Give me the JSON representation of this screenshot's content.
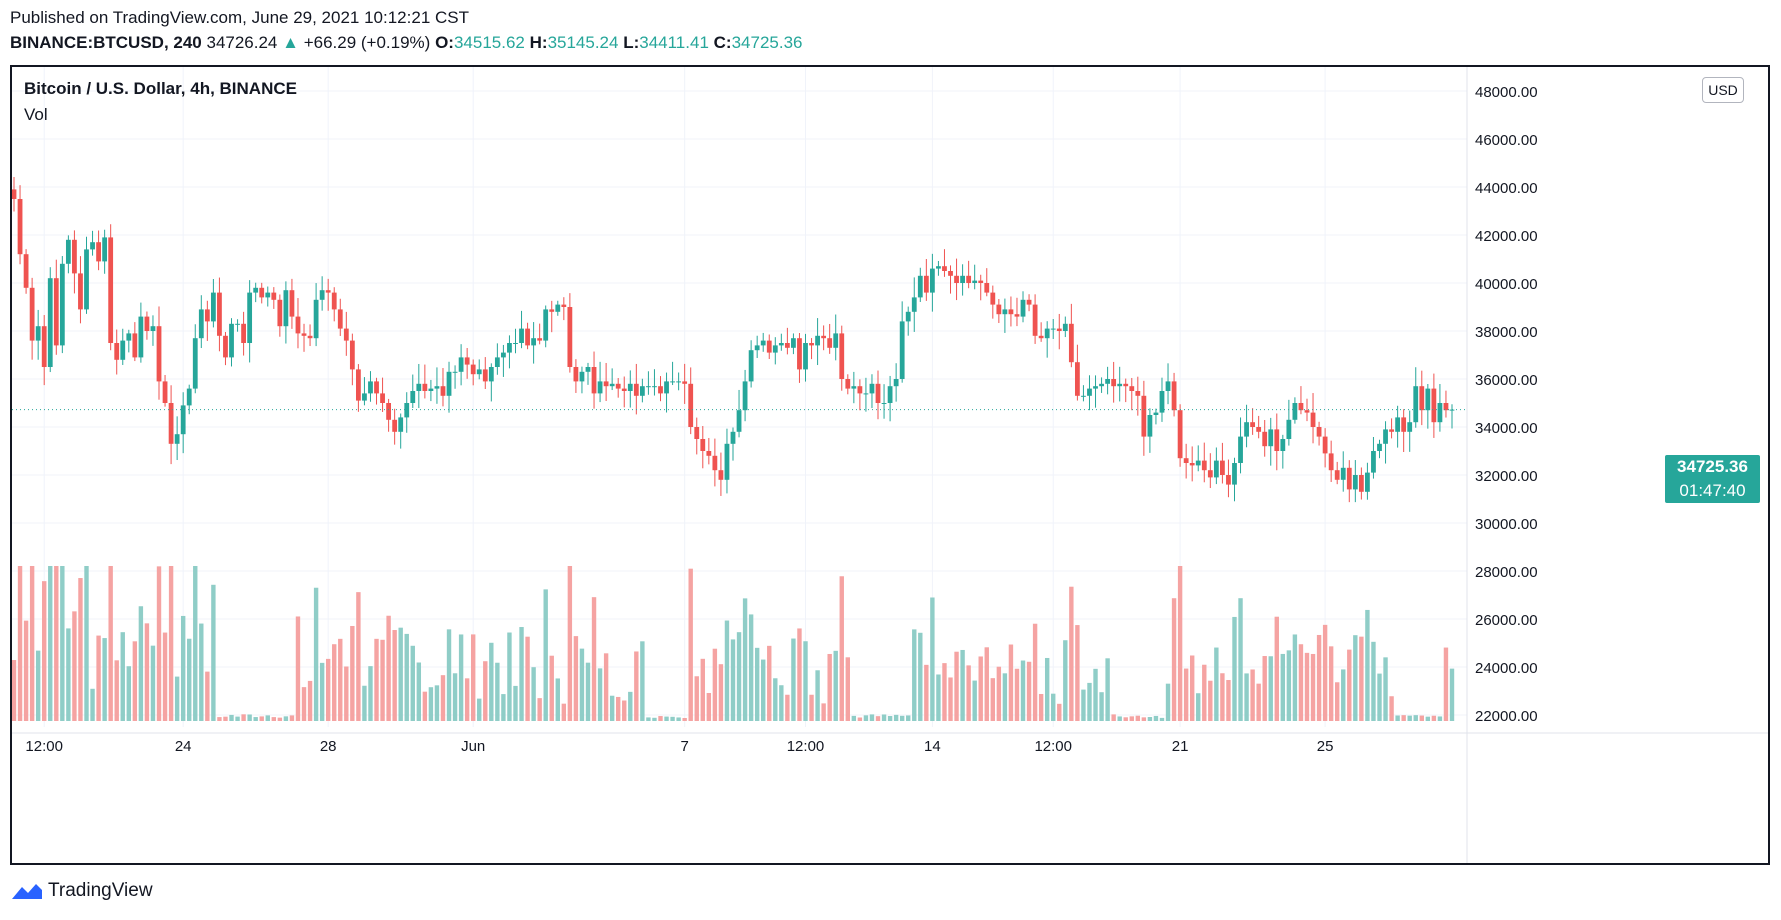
{
  "header": {
    "published": "Published on TradingView.com, June 29, 2021 10:12:21 CST",
    "symbol": "BINANCE:BTCUSD, 240",
    "last": "34726.24",
    "change": "+66.29 (+0.19%)",
    "o_label": "O:",
    "o_value": "34515.62",
    "h_label": "H:",
    "h_value": "35145.24",
    "l_label": "L:",
    "l_value": "34411.41",
    "c_label": "C:",
    "c_value": "34725.36"
  },
  "chart_title": "Bitcoin / U.S. Dollar, 4h, BINANCE",
  "volume_label": "Vol",
  "currency_button": "USD",
  "price_label": {
    "price": "34725.36",
    "countdown": "01:47:40"
  },
  "footer_logo": "TradingView",
  "colors": {
    "up": "#26a69a",
    "down": "#ef5350",
    "vol_up": "#8fcdc7",
    "vol_down": "#f5a3a2",
    "grid": "#f0f3fa"
  },
  "chart_data": {
    "type": "candlestick",
    "title": "Bitcoin / U.S. Dollar, 4h, BINANCE",
    "ylim": [
      21000,
      49000
    ],
    "y_ticks": [
      "48000.00",
      "46000.00",
      "44000.00",
      "42000.00",
      "40000.00",
      "38000.00",
      "36000.00",
      "34000.00",
      "32000.00",
      "30000.00",
      "28000.00",
      "26000.00",
      "24000.00",
      "22000.00"
    ],
    "x_ticks": [
      {
        "label": "12:00",
        "bar": 5
      },
      {
        "label": "24",
        "bar": 28
      },
      {
        "label": "28",
        "bar": 52
      },
      {
        "label": "Jun",
        "bar": 76
      },
      {
        "label": "7",
        "bar": 111
      },
      {
        "label": "12:00",
        "bar": 131
      },
      {
        "label": "14",
        "bar": 152
      },
      {
        "label": "12:00",
        "bar": 172
      },
      {
        "label": "21",
        "bar": 193
      },
      {
        "label": "25",
        "bar": 217
      }
    ],
    "last_price": 34725.36,
    "closes": [
      43500,
      41200,
      39800,
      37600,
      38200,
      36500,
      40200,
      37400,
      40800,
      41800,
      40400,
      38900,
      41400,
      41700,
      40900,
      41900,
      37500,
      36800,
      37600,
      37900,
      36900,
      38600,
      38000,
      38200,
      35900,
      35000,
      33300,
      33700,
      34900,
      35600,
      37700,
      38900,
      38400,
      39600,
      37800,
      36900,
      38300,
      38300,
      37500,
      39600,
      39800,
      39400,
      39600,
      39300,
      38200,
      39700,
      38600,
      37900,
      37800,
      37700,
      39300,
      39700,
      39600,
      38900,
      38100,
      37600,
      36400,
      35100,
      35400,
      35900,
      35400,
      35000,
      34300,
      33800,
      34400,
      35000,
      35500,
      35800,
      35500,
      35600,
      35700,
      35300,
      36300,
      36300,
      36900,
      36600,
      36200,
      36400,
      35900,
      36500,
      36900,
      37100,
      37500,
      37500,
      38100,
      37400,
      37700,
      37600,
      38900,
      38800,
      39100,
      39000,
      36500,
      35900,
      36300,
      36500,
      35400,
      35900,
      35700,
      35800,
      35600,
      35500,
      35800,
      35300,
      35700,
      35700,
      35700,
      35400,
      35900,
      35900,
      35900,
      35800,
      34000,
      33500,
      33000,
      32800,
      32200,
      31800,
      33300,
      33800,
      34700,
      35900,
      37200,
      37400,
      37600,
      37100,
      37400,
      37500,
      37300,
      37700,
      36400,
      37500,
      37400,
      37800,
      37700,
      37300,
      37900,
      36000,
      35600,
      35700,
      35400,
      35400,
      35800,
      35000,
      35000,
      35700,
      36000,
      38400,
      38800,
      39400,
      40300,
      39600,
      40600,
      40700,
      40500,
      40300,
      40000,
      40300,
      40000,
      40100,
      40000,
      39600,
      39100,
      38700,
      38900,
      38700,
      38600,
      39300,
      39100,
      37800,
      37700,
      38100,
      38100,
      38000,
      38300,
      36700,
      35300,
      35300,
      35600,
      35700,
      35800,
      36000,
      35700,
      35800,
      35700,
      35500,
      35300,
      33600,
      34500,
      34600,
      35500,
      35900,
      34700,
      32700,
      32500,
      32400,
      32600,
      32200,
      31900,
      32600,
      32000,
      31600,
      32500,
      33600,
      34200,
      34000,
      33800,
      33200,
      33900,
      33000,
      33500,
      34300,
      35000,
      34700,
      34600,
      34000,
      33600,
      32900,
      32200,
      31800,
      32300,
      31400,
      32000,
      31300,
      32100,
      33000,
      33300,
      33900,
      33800,
      34400,
      33800,
      34200,
      35700,
      34700,
      35600,
      34200,
      35000,
      34700,
      34725
    ]
  }
}
